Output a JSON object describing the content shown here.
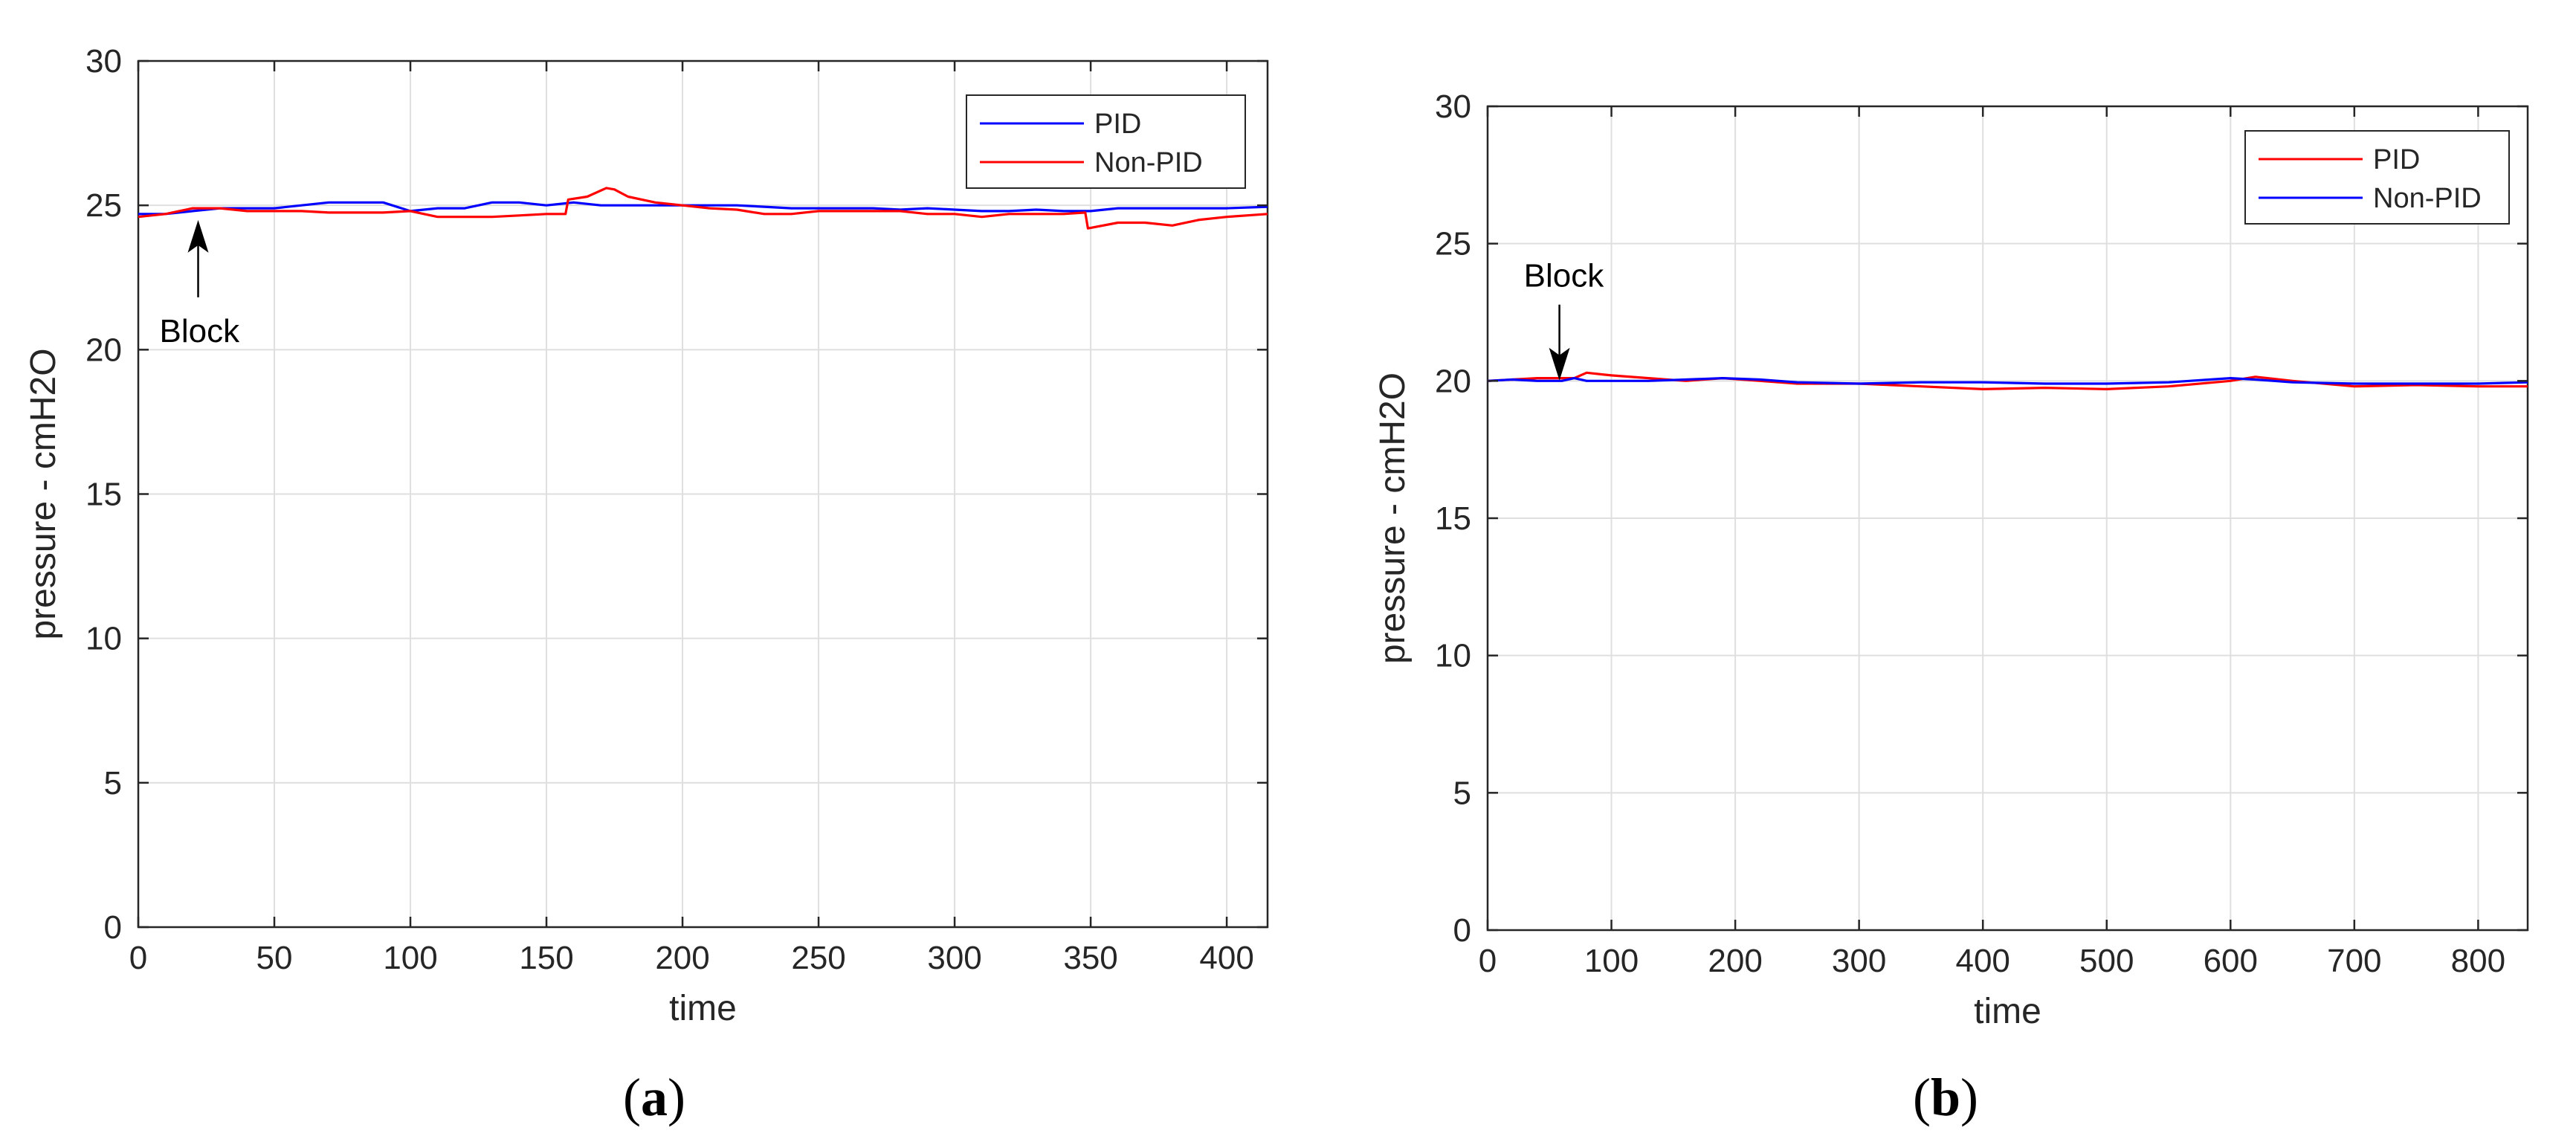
{
  "chart_data": [
    {
      "type": "line",
      "caption": {
        "open": "(",
        "letter": "a",
        "close": ")"
      },
      "xlabel": "time",
      "ylabel": "pressure - cmH2O",
      "xlim": [
        0,
        415
      ],
      "ylim": [
        0,
        30
      ],
      "xticks": [
        0,
        50,
        100,
        150,
        200,
        250,
        300,
        350,
        400
      ],
      "yticks": [
        0,
        5,
        10,
        15,
        20,
        25,
        30
      ],
      "grid": true,
      "legend_position": "top-right",
      "annotation": {
        "text": "Block",
        "x": 22,
        "y": 24.7,
        "arrow": "up"
      },
      "series": [
        {
          "name": "PID",
          "color": "#0000ff",
          "x": [
            0,
            10,
            20,
            30,
            40,
            50,
            60,
            70,
            80,
            90,
            100,
            110,
            120,
            130,
            140,
            150,
            160,
            170,
            180,
            190,
            200,
            210,
            220,
            230,
            240,
            250,
            260,
            270,
            280,
            290,
            300,
            310,
            320,
            330,
            340,
            350,
            360,
            370,
            380,
            390,
            400,
            415
          ],
          "y": [
            24.7,
            24.7,
            24.8,
            24.9,
            24.9,
            24.9,
            25.0,
            25.1,
            25.1,
            25.1,
            24.8,
            24.9,
            24.9,
            25.1,
            25.1,
            25.0,
            25.1,
            25.0,
            25.0,
            25.0,
            25.0,
            25.0,
            25.0,
            24.95,
            24.9,
            24.9,
            24.9,
            24.9,
            24.85,
            24.9,
            24.85,
            24.8,
            24.8,
            24.85,
            24.8,
            24.8,
            24.9,
            24.9,
            24.9,
            24.9,
            24.9,
            24.95
          ]
        },
        {
          "name": "Non-PID",
          "color": "#ff0000",
          "x": [
            0,
            10,
            20,
            30,
            40,
            50,
            60,
            70,
            80,
            90,
            100,
            110,
            120,
            130,
            140,
            150,
            157,
            158,
            165,
            172,
            175,
            180,
            190,
            200,
            210,
            220,
            230,
            240,
            250,
            260,
            270,
            280,
            290,
            300,
            310,
            320,
            330,
            340,
            348,
            349,
            360,
            370,
            380,
            390,
            400,
            415
          ],
          "y": [
            24.6,
            24.7,
            24.9,
            24.9,
            24.8,
            24.8,
            24.8,
            24.75,
            24.75,
            24.75,
            24.8,
            24.6,
            24.6,
            24.6,
            24.65,
            24.7,
            24.7,
            25.2,
            25.3,
            25.6,
            25.55,
            25.3,
            25.1,
            25.0,
            24.9,
            24.85,
            24.7,
            24.7,
            24.8,
            24.8,
            24.8,
            24.8,
            24.7,
            24.7,
            24.6,
            24.7,
            24.7,
            24.7,
            24.75,
            24.2,
            24.4,
            24.4,
            24.3,
            24.5,
            24.6,
            24.7
          ]
        }
      ]
    },
    {
      "type": "line",
      "caption": {
        "open": "(",
        "letter": "b",
        "close": ")"
      },
      "xlabel": "time",
      "ylabel": "pressure - cmH2O",
      "xlim": [
        0,
        840
      ],
      "ylim": [
        0,
        30
      ],
      "xticks": [
        0,
        100,
        200,
        300,
        400,
        500,
        600,
        700,
        800
      ],
      "yticks": [
        0,
        5,
        10,
        15,
        20,
        25,
        30
      ],
      "grid": true,
      "legend_position": "top-right",
      "annotation": {
        "text": "Block",
        "x": 58,
        "y": 21.1,
        "arrow": "down"
      },
      "series": [
        {
          "name": "PID",
          "color": "#ff0000",
          "x": [
            0,
            20,
            40,
            60,
            70,
            80,
            100,
            130,
            160,
            190,
            220,
            250,
            300,
            350,
            400,
            450,
            500,
            550,
            600,
            620,
            650,
            700,
            750,
            800,
            840
          ],
          "y": [
            20.0,
            20.05,
            20.1,
            20.1,
            20.1,
            20.3,
            20.2,
            20.1,
            20.0,
            20.1,
            20.0,
            19.9,
            19.9,
            19.8,
            19.7,
            19.75,
            19.7,
            19.8,
            20.0,
            20.15,
            20.0,
            19.8,
            19.85,
            19.8,
            19.8
          ]
        },
        {
          "name": "Non-PID",
          "color": "#0000ff",
          "x": [
            0,
            20,
            40,
            60,
            70,
            80,
            100,
            130,
            160,
            190,
            220,
            250,
            300,
            350,
            400,
            450,
            500,
            550,
            600,
            620,
            650,
            700,
            750,
            800,
            840
          ],
          "y": [
            20.0,
            20.05,
            20.0,
            20.0,
            20.1,
            20.0,
            20.0,
            20.0,
            20.05,
            20.1,
            20.05,
            19.95,
            19.9,
            19.95,
            19.95,
            19.9,
            19.9,
            19.95,
            20.1,
            20.05,
            19.95,
            19.9,
            19.9,
            19.9,
            19.95
          ]
        }
      ]
    }
  ]
}
